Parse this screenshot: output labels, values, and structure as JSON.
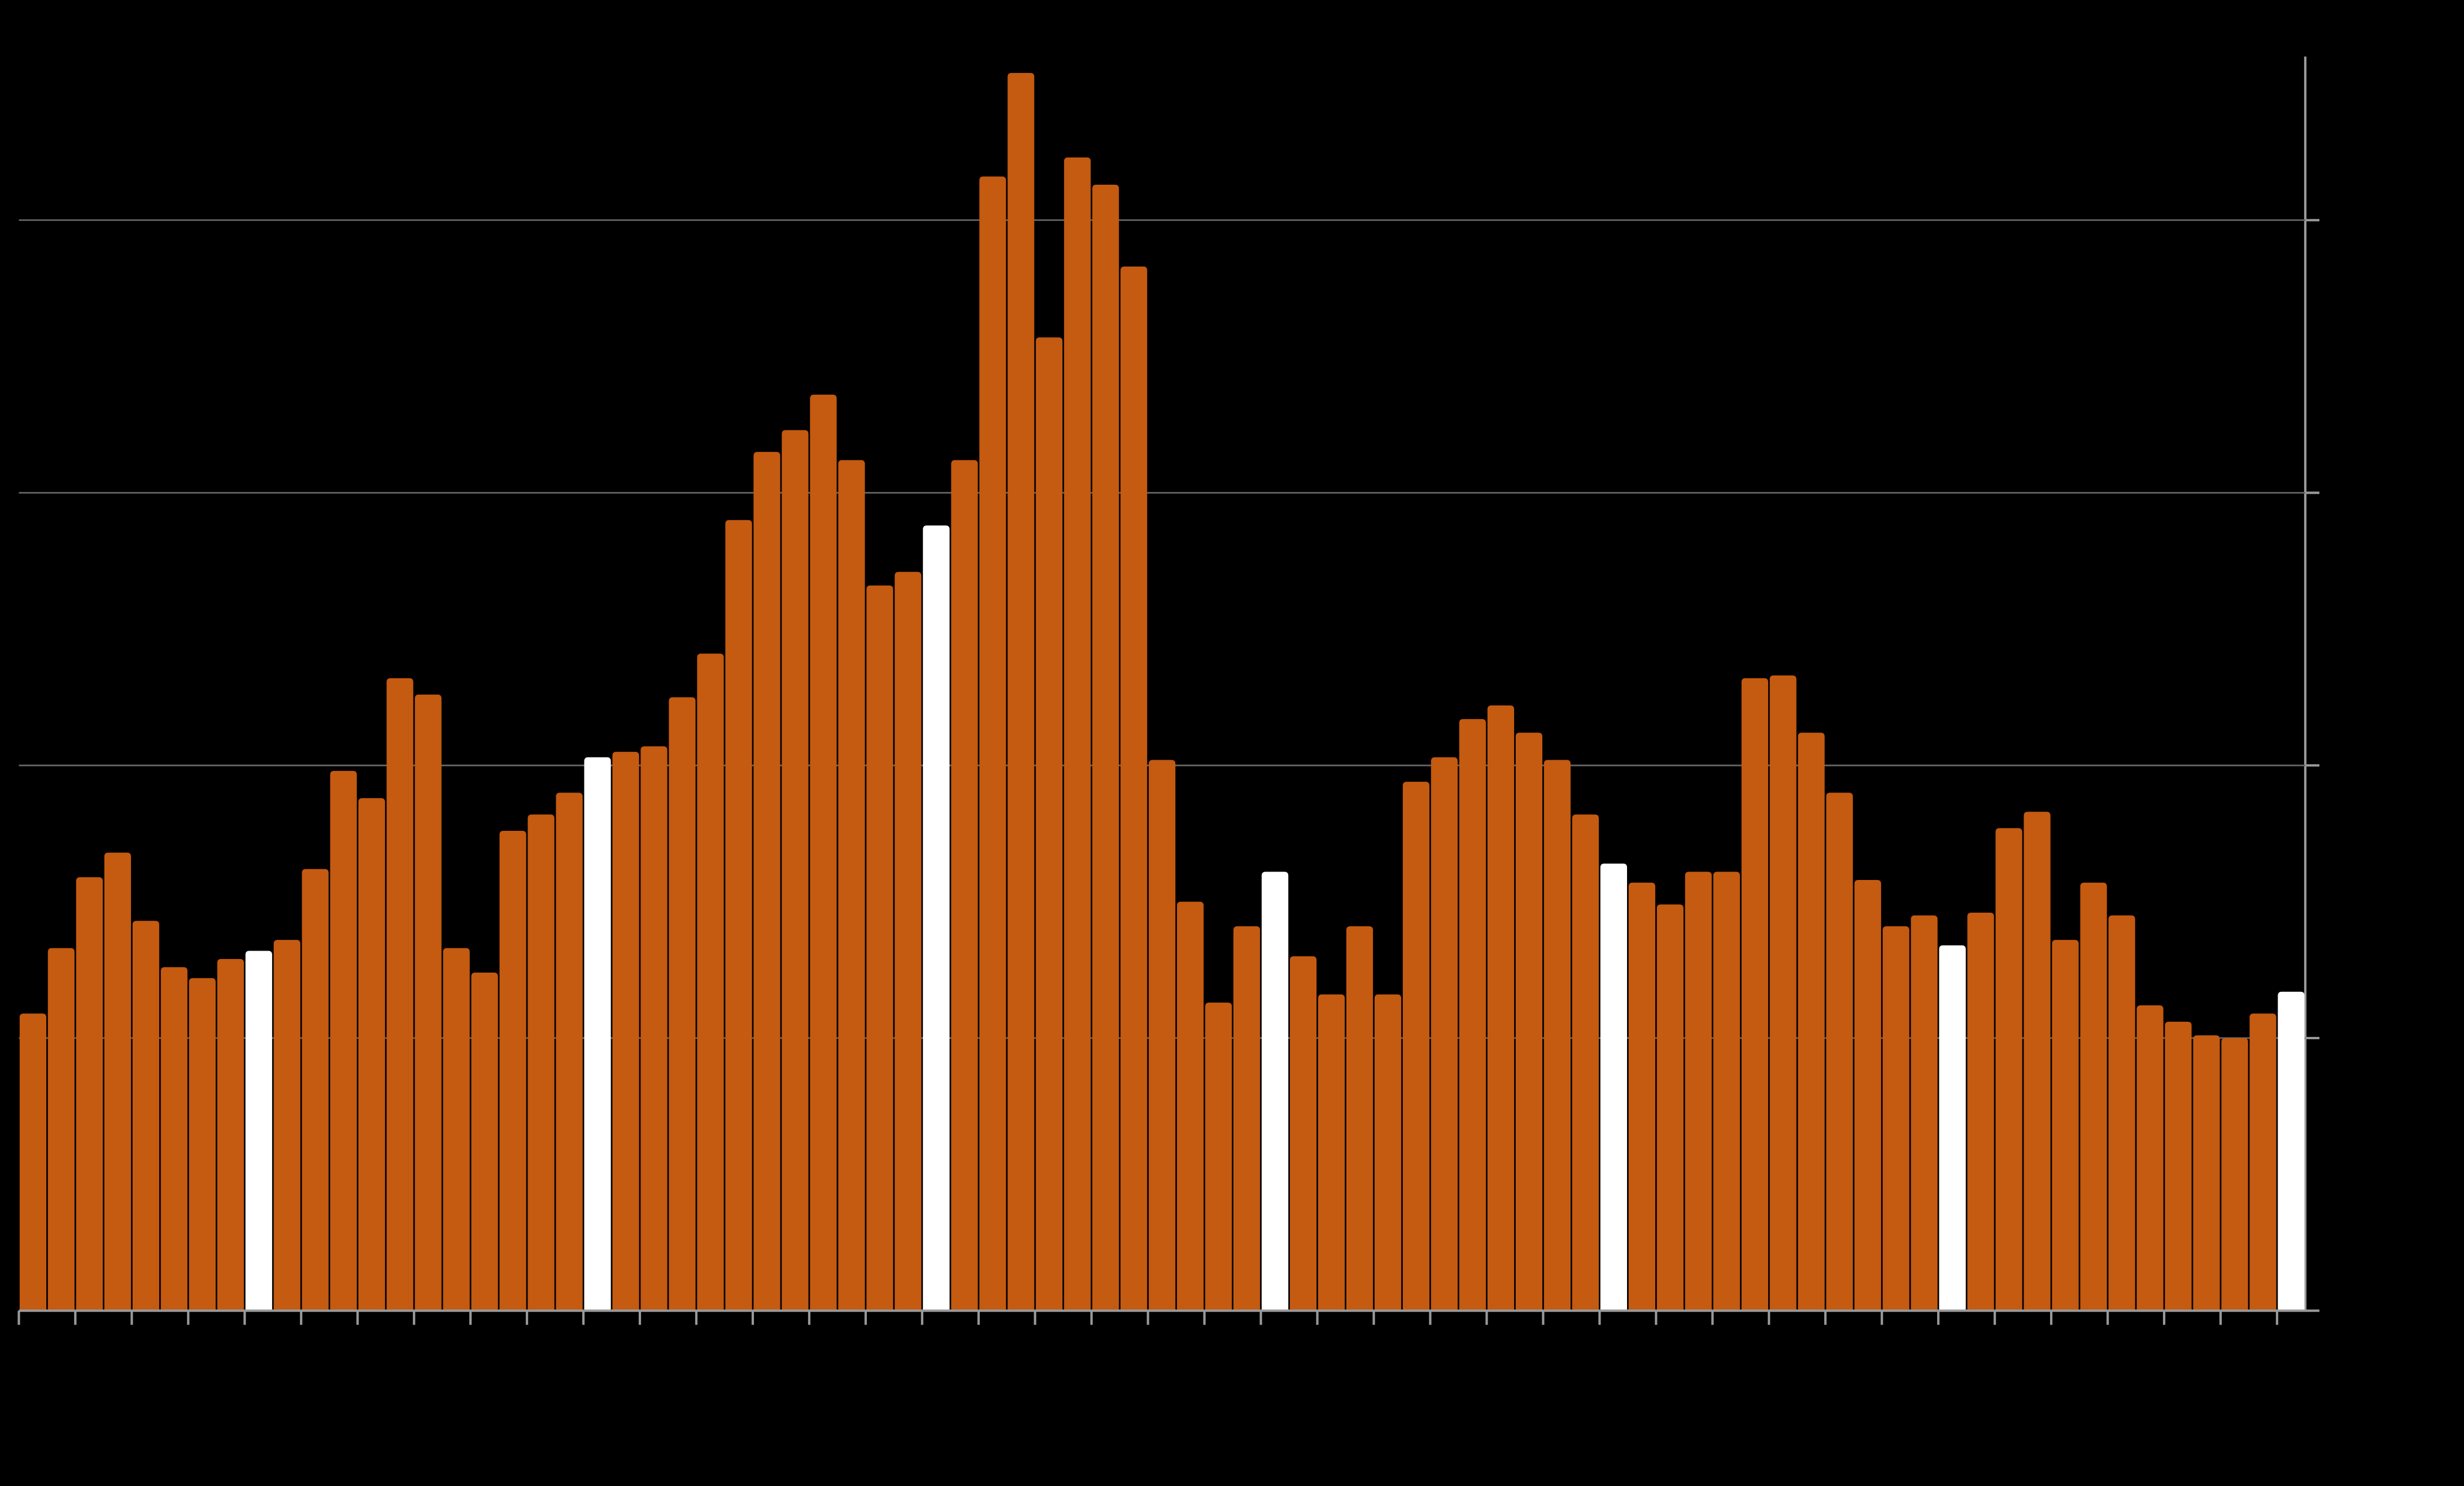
{
  "chart_data": {
    "type": "bar",
    "values": [
      1.09,
      1.33,
      1.59,
      1.68,
      1.43,
      1.26,
      1.22,
      1.29,
      1.32,
      1.36,
      1.62,
      1.98,
      1.88,
      2.32,
      2.26,
      1.33,
      1.24,
      1.76,
      1.82,
      1.9,
      2.03,
      2.05,
      2.07,
      2.25,
      2.41,
      2.9,
      3.15,
      3.23,
      3.36,
      3.12,
      2.66,
      2.71,
      2.88,
      3.12,
      4.16,
      4.54,
      3.57,
      4.23,
      4.13,
      3.83,
      2.02,
      1.5,
      1.13,
      1.41,
      1.61,
      1.3,
      1.16,
      1.41,
      1.16,
      1.94,
      2.03,
      2.17,
      2.22,
      2.12,
      2.02,
      1.82,
      1.64,
      1.57,
      1.49,
      1.61,
      1.61,
      2.32,
      2.33,
      2.12,
      1.9,
      1.58,
      1.41,
      1.45,
      1.34,
      1.46,
      1.77,
      1.83,
      1.36,
      1.57,
      1.45,
      1.12,
      1.06,
      1.01,
      1.0,
      1.09,
      1.17
    ],
    "colors": [
      "#c55a11",
      "#c55a11",
      "#c55a11",
      "#c55a11",
      "#c55a11",
      "#c55a11",
      "#c55a11",
      "#c55a11",
      "#ffffff",
      "#c55a11",
      "#c55a11",
      "#c55a11",
      "#c55a11",
      "#c55a11",
      "#c55a11",
      "#c55a11",
      "#c55a11",
      "#c55a11",
      "#c55a11",
      "#c55a11",
      "#ffffff",
      "#c55a11",
      "#c55a11",
      "#c55a11",
      "#c55a11",
      "#c55a11",
      "#c55a11",
      "#c55a11",
      "#c55a11",
      "#c55a11",
      "#c55a11",
      "#c55a11",
      "#ffffff",
      "#c55a11",
      "#c55a11",
      "#c55a11",
      "#c55a11",
      "#c55a11",
      "#c55a11",
      "#c55a11",
      "#c55a11",
      "#c55a11",
      "#c55a11",
      "#c55a11",
      "#ffffff",
      "#c55a11",
      "#c55a11",
      "#c55a11",
      "#c55a11",
      "#c55a11",
      "#c55a11",
      "#c55a11",
      "#c55a11",
      "#c55a11",
      "#c55a11",
      "#c55a11",
      "#ffffff",
      "#c55a11",
      "#c55a11",
      "#c55a11",
      "#c55a11",
      "#c55a11",
      "#c55a11",
      "#c55a11",
      "#c55a11",
      "#c55a11",
      "#c55a11",
      "#c55a11",
      "#ffffff",
      "#c55a11",
      "#c55a11",
      "#c55a11",
      "#c55a11",
      "#c55a11",
      "#c55a11",
      "#c55a11",
      "#c55a11",
      "#c55a11",
      "#c55a11",
      "#c55a11",
      "#ffffff"
    ],
    "ylim": [
      0,
      4.6
    ],
    "yticks": [
      0,
      1,
      2,
      3,
      4
    ],
    "grid": true
  }
}
